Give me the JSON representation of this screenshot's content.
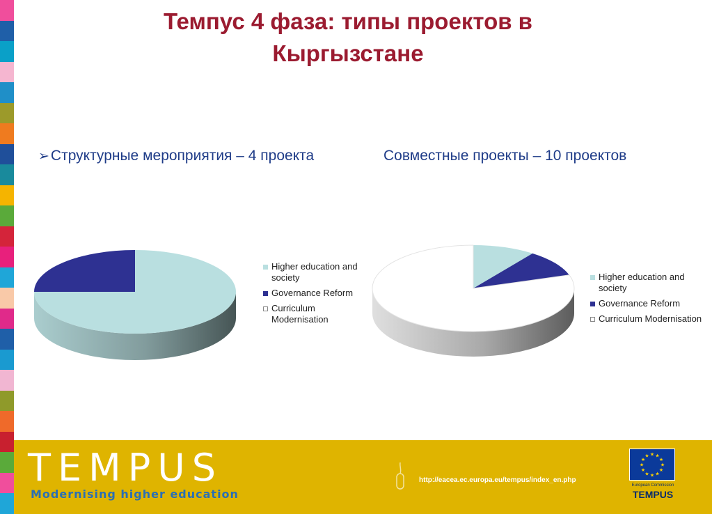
{
  "title": "Темпус 4 фаза: типы проектов в Кыргызстане",
  "subtitles": {
    "left": "Структурные мероприятия – 4 проекта",
    "right": "Совместные проекты – 10 проектов"
  },
  "colors": {
    "title": "#9b1b30",
    "subtitle": "#1f3c88",
    "higher_education": "#b9dfe0",
    "governance": "#2e3192",
    "curriculum": "#ffffff",
    "footer": "#dfb400",
    "tagline": "#2a6fb4",
    "stripe": [
      "#f04e9c",
      "#1f5fa8",
      "#0aa0c8",
      "#f5b6d0",
      "#1f8fc8",
      "#9c9a2a",
      "#ef7b1f",
      "#1f4f9a",
      "#198a9c",
      "#f5b400",
      "#5aaa3a",
      "#d4243a",
      "#e8207c",
      "#1fa6d8",
      "#f9c9a8",
      "#e02a8a",
      "#1f5fa8",
      "#1a9ad0",
      "#f1b6d2",
      "#8f9a2a",
      "#ef6a2a",
      "#c8202f",
      "#5aaa3a",
      "#f04e9c",
      "#1fa6d8"
    ]
  },
  "chart_data": [
    {
      "type": "pie",
      "categories": [
        "Higher education and society",
        "Governance Reform",
        "Curriculum Modernisation"
      ],
      "values": [
        3,
        1,
        0
      ],
      "legend_position": "right"
    },
    {
      "type": "pie",
      "categories": [
        "Higher education and society",
        "Governance Reform",
        "Curriculum Modernisation"
      ],
      "values": [
        1,
        1,
        8
      ],
      "legend_position": "right"
    }
  ],
  "footer": {
    "brand": "TEMPUS",
    "tagline": "Modernising higher education",
    "url": "http://eacea.ec.europa.eu/tempus/index_en.php",
    "eu_caption": "European Commission",
    "eu_brand": "TEMPUS",
    "icons": [
      "computer-mouse-icon",
      "eu-flag-icon"
    ]
  }
}
